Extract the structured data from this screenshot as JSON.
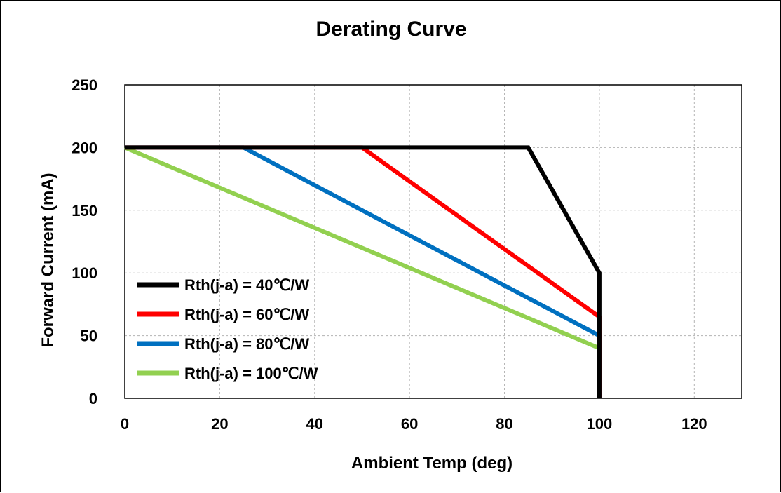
{
  "chart_data": {
    "type": "line",
    "title": "Derating Curve",
    "xlabel": "Ambient Temp (deg)",
    "ylabel": "Forward Current (mA)",
    "xlim": [
      0,
      130
    ],
    "ylim": [
      0,
      250
    ],
    "xticks": [
      0,
      20,
      40,
      60,
      80,
      100,
      120
    ],
    "yticks": [
      0,
      50,
      100,
      150,
      200,
      250
    ],
    "grid": true,
    "legend_position": "lower-left",
    "series": [
      {
        "name": "Rth(j-a) = 40℃/W",
        "color": "#000000",
        "points": [
          [
            0,
            200
          ],
          [
            85,
            200
          ],
          [
            100,
            100
          ],
          [
            100,
            0
          ]
        ]
      },
      {
        "name": "Rth(j-a) = 60℃/W",
        "color": "#ff0000",
        "points": [
          [
            0,
            200
          ],
          [
            50,
            200
          ],
          [
            100,
            65
          ],
          [
            100,
            0
          ]
        ]
      },
      {
        "name": "Rth(j-a) = 80℃/W",
        "color": "#0070c0",
        "points": [
          [
            0,
            200
          ],
          [
            25,
            200
          ],
          [
            100,
            50
          ],
          [
            100,
            0
          ]
        ]
      },
      {
        "name": "Rth(j-a) = 100℃/W",
        "color": "#92d050",
        "points": [
          [
            0,
            200
          ],
          [
            100,
            40
          ],
          [
            100,
            0
          ]
        ]
      }
    ]
  }
}
